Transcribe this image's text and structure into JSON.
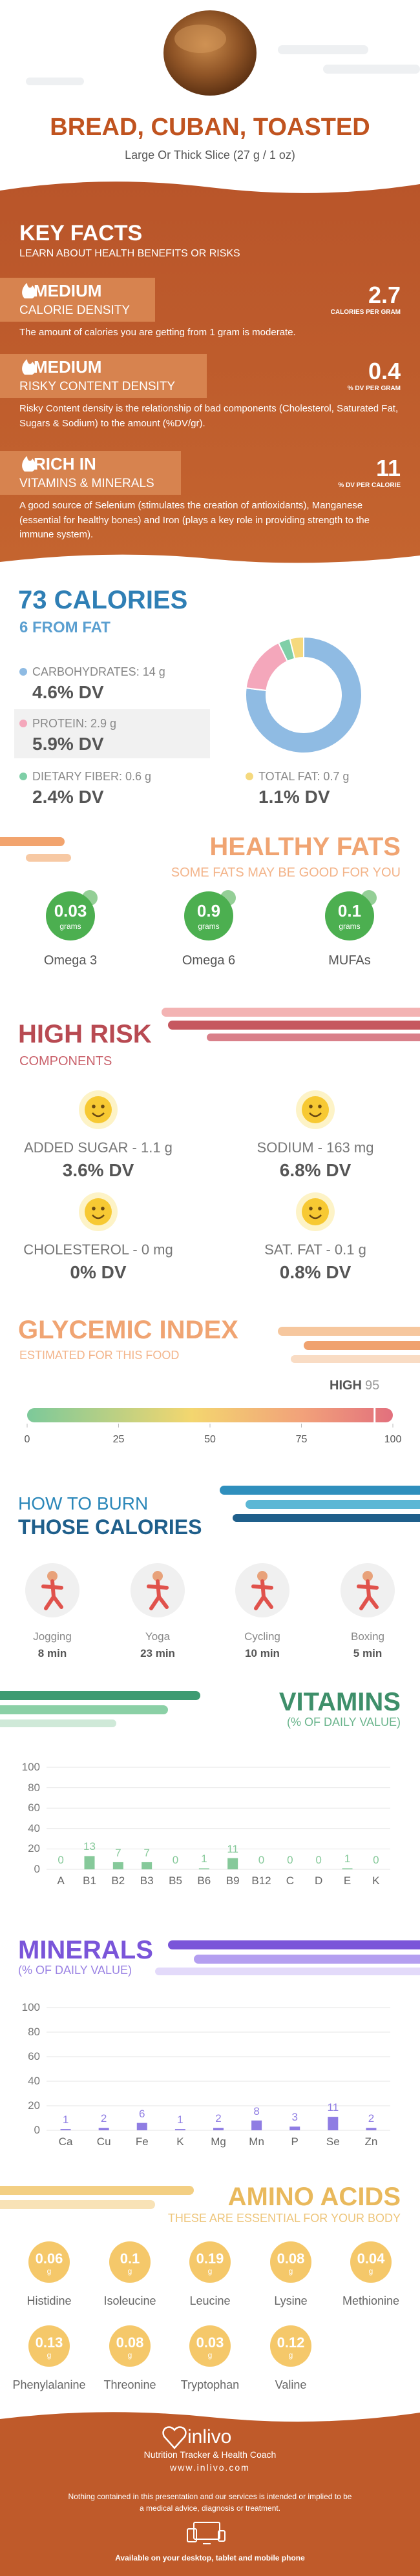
{
  "header": {
    "title": "BREAD, CUBAN, TOASTED",
    "serving": "Large Or Thick Slice (27 g / 1 oz)"
  },
  "key_facts": {
    "title": "KEY FACTS",
    "subtitle": "LEARN ABOUT HEALTH BENEFITS OR RISKS",
    "items": [
      {
        "level": "MEDIUM",
        "name": "CALORIE DENSITY",
        "value": "2.7",
        "unit": "CALORIES PER GRAM",
        "text": "The amount of calories you are getting from 1 gram is moderate."
      },
      {
        "level": "MEDIUM",
        "name": "RISKY CONTENT DENSITY",
        "value": "0.4",
        "unit": "% DV PER GRAM",
        "text": "Risky Content density is the relationship of bad components (Cholesterol, Saturated Fat, Sugars & Sodium) to the amount (%DV/gr)."
      },
      {
        "level": "RICH IN",
        "name": "VITAMINS & MINERALS",
        "value": "11",
        "unit": "% DV PER CALORIE",
        "text": "A good source of Selenium (stimulates the creation of antioxidants), Manganese (essential for healthy bones) and Iron (plays a key role in providing strength to the immune system)."
      }
    ]
  },
  "chart_data": [
    {
      "type": "donut",
      "title": "73 CALORIES",
      "subtitle": "6 FROM FAT",
      "categories": [
        "CARBOHYDRATES: 14 g",
        "PROTEIN: 2.9 g",
        "DIETARY FIBER: 0.6 g",
        "TOTAL FAT: 0.7 g"
      ],
      "values": [
        14,
        2.9,
        0.6,
        0.7
      ],
      "dv_labels": [
        "4.6% DV",
        "5.9% DV",
        "2.4% DV",
        "1.1% DV"
      ],
      "colors": [
        "#8fbbe3",
        "#f4a7bb",
        "#7fcfa7",
        "#f5d97e"
      ]
    },
    {
      "type": "bar",
      "title": "VITAMINS",
      "subtitle": "(% OF DAILY VALUE)",
      "categories": [
        "A",
        "B1",
        "B2",
        "B3",
        "B5",
        "B6",
        "B9",
        "B12",
        "C",
        "D",
        "E",
        "K"
      ],
      "values": [
        0,
        13,
        7,
        7,
        0,
        1,
        11,
        0,
        0,
        0,
        1,
        0
      ],
      "color": "#86c99a",
      "ylim": [
        0,
        100
      ],
      "yticks": [
        0,
        20,
        40,
        60,
        80,
        100
      ],
      "grid": true
    },
    {
      "type": "bar",
      "title": "MINERALS",
      "subtitle": "(% OF DAILY VALUE)",
      "categories": [
        "Ca",
        "Cu",
        "Fe",
        "K",
        "Mg",
        "Mn",
        "P",
        "Se",
        "Zn"
      ],
      "values": [
        1,
        2,
        6,
        1,
        2,
        8,
        3,
        11,
        2
      ],
      "color": "#8f7de3",
      "ylim": [
        0,
        100
      ],
      "yticks": [
        0,
        20,
        40,
        60,
        80,
        100
      ],
      "grid": true
    }
  ],
  "healthy_fats": {
    "title": "HEALTHY FATS",
    "subtitle": "SOME FATS MAY BE GOOD FOR YOU",
    "unit": "grams",
    "items": [
      {
        "value": "0.03",
        "name": "Omega 3"
      },
      {
        "value": "0.9",
        "name": "Omega 6"
      },
      {
        "value": "0.1",
        "name": "MUFAs"
      }
    ]
  },
  "high_risk": {
    "title": "HIGH RISK",
    "subtitle": "COMPONENTS",
    "items": [
      {
        "label": "ADDED SUGAR - 1.1 g",
        "dv": "3.6% DV"
      },
      {
        "label": "SODIUM - 163 mg",
        "dv": "6.8% DV"
      },
      {
        "label": "CHOLESTEROL - 0 mg",
        "dv": "0% DV"
      },
      {
        "label": "SAT. FAT - 0.1 g",
        "dv": "0.8% DV"
      }
    ]
  },
  "glycemic": {
    "title": "GLYCEMIC INDEX",
    "subtitle": "ESTIMATED FOR THIS FOOD",
    "level": "HIGH",
    "value": 95,
    "xlim": [
      0,
      100
    ],
    "xticks": [
      0,
      25,
      50,
      75,
      100
    ]
  },
  "burn": {
    "title_1": "HOW TO BURN",
    "title_2": "THOSE CALORIES",
    "items": [
      {
        "activity": "Jogging",
        "time": "8 min"
      },
      {
        "activity": "Yoga",
        "time": "23 min"
      },
      {
        "activity": "Cycling",
        "time": "10 min"
      },
      {
        "activity": "Boxing",
        "time": "5 min"
      }
    ]
  },
  "amino_acids": {
    "title": "AMINO ACIDS",
    "subtitle": "THESE ARE ESSENTIAL FOR YOUR BODY",
    "unit": "g",
    "items": [
      {
        "value": "0.06",
        "name": "Histidine"
      },
      {
        "value": "0.1",
        "name": "Isoleucine"
      },
      {
        "value": "0.19",
        "name": "Leucine"
      },
      {
        "value": "0.08",
        "name": "Lysine"
      },
      {
        "value": "0.04",
        "name": "Methionine"
      },
      {
        "value": "0.13",
        "name": "Phenylalanine"
      },
      {
        "value": "0.08",
        "name": "Threonine"
      },
      {
        "value": "0.03",
        "name": "Tryptophan"
      },
      {
        "value": "0.12",
        "name": "Valine"
      }
    ]
  },
  "footer": {
    "brand": "inlivo",
    "tagline": "Nutrition Tracker & Health Coach",
    "url": "www.inlivo.com",
    "disclaimer": "Nothing contained in this presentation and our services is intended or implied to be a medical advice, diagnosis or treatment.",
    "availability": "Available on your desktop, tablet and mobile phone"
  }
}
